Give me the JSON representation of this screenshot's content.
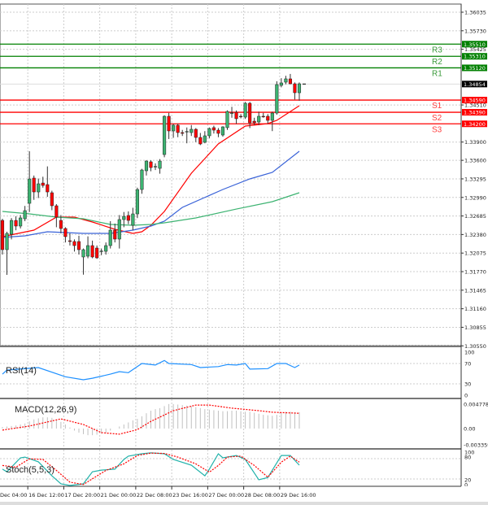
{
  "chart_data": {
    "type": "candlestick",
    "main": {
      "price_range": [
        1.3055,
        1.36035
      ],
      "y_ticks": [
        "1.36035",
        "1.35730",
        "1.35425",
        "1.34510",
        "1.33900",
        "1.33600",
        "1.33295",
        "1.32990",
        "1.32685",
        "1.32380",
        "1.32075",
        "1.31770",
        "1.31465",
        "1.31160",
        "1.30855",
        "1.30550"
      ],
      "current_price": "1.34854",
      "grid": true,
      "candles": [
        [
          1.32612,
          1.3264,
          1.32051,
          1.32131
        ],
        [
          1.32131,
          1.32426,
          1.31717,
          1.32398
        ],
        [
          1.32385,
          1.3265,
          1.323,
          1.32612
        ],
        [
          1.32612,
          1.3268,
          1.3245,
          1.32519
        ],
        [
          1.32519,
          1.327,
          1.3248,
          1.32653
        ],
        [
          1.32639,
          1.3285,
          1.326,
          1.32773
        ],
        [
          1.32893,
          1.33749,
          1.3275,
          1.33294
        ],
        [
          1.33308,
          1.3335,
          1.3295,
          1.3308
        ],
        [
          1.3308,
          1.333,
          1.3298,
          1.33214
        ],
        [
          1.33227,
          1.3333,
          1.3315,
          1.33187
        ],
        [
          1.33201,
          1.335,
          1.33,
          1.3308
        ],
        [
          1.33067,
          1.331,
          1.3278,
          1.32853
        ],
        [
          1.32853,
          1.3288,
          1.325,
          1.32666
        ],
        [
          1.32612,
          1.327,
          1.324,
          1.32479
        ],
        [
          1.32479,
          1.325,
          1.3225,
          1.32345
        ],
        [
          1.32278,
          1.324,
          1.322,
          1.32265
        ],
        [
          1.32265,
          1.323,
          1.321,
          1.32198
        ],
        [
          1.32265,
          1.3236,
          1.3205,
          1.32131
        ],
        [
          1.32011,
          1.3215,
          1.3172,
          1.32131
        ],
        [
          1.32024,
          1.3235,
          1.3199,
          1.32198
        ],
        [
          1.32198,
          1.3228,
          1.3199,
          1.32011
        ],
        [
          1.32158,
          1.322,
          1.3198,
          1.31997
        ],
        [
          1.32104,
          1.3215,
          1.3204,
          1.3211
        ],
        [
          1.32104,
          1.3225,
          1.3205,
          1.32198
        ],
        [
          1.32198,
          1.326,
          1.3215,
          1.32452
        ],
        [
          1.32452,
          1.3256,
          1.3225,
          1.32305
        ],
        [
          1.32305,
          1.327,
          1.3215,
          1.32626
        ],
        [
          1.32626,
          1.3275,
          1.325,
          1.32679
        ],
        [
          1.32693,
          1.3276,
          1.3255,
          1.32612
        ],
        [
          1.32532,
          1.3282,
          1.3245,
          1.32719
        ],
        [
          1.32719,
          1.3315,
          1.3265,
          1.3312
        ],
        [
          1.3312,
          1.3346,
          1.3305,
          1.33441
        ],
        [
          1.33428,
          1.336,
          1.3335,
          1.33588
        ],
        [
          1.33575,
          1.336,
          1.3342,
          1.33481
        ],
        [
          1.33495,
          1.3355,
          1.3344,
          1.335
        ],
        [
          1.33468,
          1.3362,
          1.3338,
          1.33588
        ],
        [
          1.33695,
          1.3434,
          1.3365,
          1.34324
        ],
        [
          1.34324,
          1.3438,
          1.3395,
          1.34083
        ],
        [
          1.34083,
          1.342,
          1.3397,
          1.34177
        ],
        [
          1.34177,
          1.342,
          1.3398,
          1.34056
        ],
        [
          1.34056,
          1.341,
          1.34,
          1.34043
        ],
        [
          1.3407,
          1.3414,
          1.3388,
          1.34075
        ],
        [
          1.34056,
          1.3418,
          1.34,
          1.3411
        ],
        [
          1.3411,
          1.3413,
          1.339,
          1.33976
        ],
        [
          1.33976,
          1.3405,
          1.3385,
          1.33869
        ],
        [
          1.33896,
          1.3408,
          1.3388,
          1.34003
        ],
        [
          1.34003,
          1.3414,
          1.3396,
          1.34123
        ],
        [
          1.34137,
          1.3417,
          1.3404,
          1.34096
        ],
        [
          1.34096,
          1.3413,
          1.3398,
          1.34043
        ],
        [
          1.34016,
          1.3416,
          1.3399,
          1.3415
        ],
        [
          1.34137,
          1.3442,
          1.341,
          1.34404
        ],
        [
          1.34377,
          1.3448,
          1.343,
          1.3438
        ],
        [
          1.3439,
          1.3442,
          1.342,
          1.34284
        ],
        [
          1.34324,
          1.3436,
          1.3429,
          1.3432
        ],
        [
          1.3431,
          1.3456,
          1.3428,
          1.34538
        ],
        [
          1.34538,
          1.3456,
          1.3413,
          1.34217
        ],
        [
          1.34243,
          1.343,
          1.3418,
          1.34217
        ],
        [
          1.3423,
          1.344,
          1.3418,
          1.34324
        ],
        [
          1.34324,
          1.3438,
          1.343,
          1.3432
        ],
        [
          1.34324,
          1.3436,
          1.342,
          1.34257
        ],
        [
          1.34257,
          1.344,
          1.3408,
          1.34377
        ],
        [
          1.34377,
          1.349,
          1.3435,
          1.34845
        ],
        [
          1.34832,
          1.3495,
          1.348,
          1.34872
        ],
        [
          1.34885,
          1.3499,
          1.3485,
          1.34939
        ],
        [
          1.34939,
          1.3502,
          1.3485,
          1.34858
        ],
        [
          1.34858,
          1.3488,
          1.346,
          1.34711
        ],
        [
          1.34711,
          1.3488,
          1.3458,
          1.34858
        ]
      ],
      "moving_averages": [
        {
          "color": "#ff0000",
          "points": [
            [
              0,
              1.32345
            ],
            [
              7,
              1.32452
            ],
            [
              12,
              1.32666
            ],
            [
              16,
              1.32666
            ],
            [
              20,
              1.32586
            ],
            [
              25,
              1.32465
            ],
            [
              29,
              1.32398
            ],
            [
              31,
              1.32425
            ],
            [
              33,
              1.32532
            ],
            [
              36,
              1.3276
            ],
            [
              42,
              1.33388
            ],
            [
              48,
              1.33869
            ],
            [
              54,
              1.34163
            ],
            [
              59,
              1.34203
            ],
            [
              61,
              1.34257
            ],
            [
              66,
              1.34498
            ]
          ]
        },
        {
          "color": "#3a63d8",
          "points": [
            [
              0,
              1.32332
            ],
            [
              5,
              1.32358
            ],
            [
              10,
              1.32425
            ],
            [
              18,
              1.32398
            ],
            [
              24,
              1.32398
            ],
            [
              29,
              1.32452
            ],
            [
              33,
              1.32519
            ],
            [
              36,
              1.32599
            ],
            [
              40,
              1.32826
            ],
            [
              49,
              1.3312
            ],
            [
              55,
              1.33294
            ],
            [
              60,
              1.33401
            ],
            [
              66,
              1.33749
            ]
          ]
        },
        {
          "color": "#3cb371",
          "points": [
            [
              0,
              1.32759
            ],
            [
              6,
              1.32719
            ],
            [
              12,
              1.32666
            ],
            [
              18,
              1.32639
            ],
            [
              24,
              1.32546
            ],
            [
              29,
              1.32532
            ],
            [
              33,
              1.32546
            ],
            [
              36,
              1.32572
            ],
            [
              43,
              1.32653
            ],
            [
              52,
              1.32799
            ],
            [
              60,
              1.3292
            ],
            [
              66,
              1.33067
            ]
          ]
        }
      ],
      "pivots": [
        {
          "name": "R3",
          "value": "1.35510",
          "color": "#008000"
        },
        {
          "name": "R2",
          "value": "1.35310",
          "color": "#008000"
        },
        {
          "name": "R1",
          "value": "1.35120",
          "color": "#008000"
        },
        {
          "name": "S1",
          "value": "1.34590",
          "color": "#ff0000"
        },
        {
          "name": "S2",
          "value": "1.34390",
          "color": "#ff0000"
        },
        {
          "name": "S3",
          "value": "1.34200",
          "color": "#ff0000"
        }
      ]
    },
    "rsi": {
      "label": "RSI(14)",
      "range": [
        0,
        100
      ],
      "levels": [
        "100",
        "70",
        "30",
        "0"
      ],
      "color": "#1e90ff",
      "points": [
        [
          0,
          49
        ],
        [
          1,
          57
        ],
        [
          8,
          62
        ],
        [
          14,
          44
        ],
        [
          18,
          38
        ],
        [
          20,
          41
        ],
        [
          24,
          49
        ],
        [
          26,
          54
        ],
        [
          28,
          52
        ],
        [
          31,
          70
        ],
        [
          34,
          67
        ],
        [
          36,
          76
        ],
        [
          37,
          70
        ],
        [
          42,
          68
        ],
        [
          44,
          62
        ],
        [
          48,
          64
        ],
        [
          50,
          68
        ],
        [
          52,
          67
        ],
        [
          54,
          70
        ],
        [
          55,
          59
        ],
        [
          59,
          60
        ],
        [
          61,
          70
        ],
        [
          63,
          70
        ],
        [
          65,
          62
        ],
        [
          66,
          67
        ]
      ]
    },
    "macd": {
      "label": "MACD(12,26,9)",
      "levels": [
        "0.004778",
        "0.00",
        "-0.003359"
      ],
      "range": [
        -0.003359,
        0.004778
      ],
      "histogram": [
        0.0003,
        0.0004,
        0.0005,
        0.0006,
        0.0008,
        0.001,
        0.0014,
        0.0018,
        0.002,
        0.0022,
        0.0022,
        0.0021,
        0.0018,
        0.0013,
        0.0008,
        0.0002,
        -0.0004,
        -0.0008,
        -0.0011,
        -0.0013,
        -0.0013,
        -0.0012,
        -0.001,
        -0.0008,
        -0.0004,
        0,
        0.0004,
        0.0008,
        0.0012,
        0.0016,
        0.0019,
        0.0024,
        0.003,
        0.0035,
        0.0038,
        0.004,
        0.0044,
        0.0048,
        0.0048,
        0.0047,
        0.0046,
        0.0045,
        0.0044,
        0.0042,
        0.004,
        0.0038,
        0.0037,
        0.0036,
        0.0035,
        0.0034,
        0.0034,
        0.0035,
        0.0035,
        0.0034,
        0.0033,
        0.0033,
        0.0031,
        0.0029,
        0.0027,
        0.0026,
        0.0025,
        0.0027,
        0.0031,
        0.0033,
        0.0033,
        0.0032,
        0.0032
      ],
      "signal": [
        [
          0,
          -0.0003
        ],
        [
          6,
          0.0005
        ],
        [
          13,
          0.0019
        ],
        [
          18,
          0.0008
        ],
        [
          22,
          -0.0008
        ],
        [
          26,
          -0.0011
        ],
        [
          30,
          -0.0002
        ],
        [
          33,
          0.0014
        ],
        [
          38,
          0.0035
        ],
        [
          43,
          0.0046
        ],
        [
          46,
          0.0046
        ],
        [
          51,
          0.004
        ],
        [
          57,
          0.0035
        ],
        [
          60,
          0.0032
        ],
        [
          66,
          0.003
        ]
      ]
    },
    "stoch": {
      "label": "Stoch(5,5,3)",
      "range": [
        0,
        100
      ],
      "levels": [
        "100",
        "80",
        "20",
        "0"
      ],
      "main": [
        [
          0,
          49
        ],
        [
          1,
          41
        ],
        [
          4,
          83
        ],
        [
          5,
          85
        ],
        [
          8,
          71
        ],
        [
          11,
          29
        ],
        [
          13,
          5
        ],
        [
          15,
          0
        ],
        [
          18,
          5
        ],
        [
          20,
          41
        ],
        [
          22,
          46
        ],
        [
          25,
          49
        ],
        [
          27,
          78
        ],
        [
          28,
          88
        ],
        [
          31,
          95
        ],
        [
          33,
          98
        ],
        [
          36,
          95
        ],
        [
          38,
          78
        ],
        [
          42,
          61
        ],
        [
          45,
          29
        ],
        [
          46,
          49
        ],
        [
          48,
          95
        ],
        [
          49,
          83
        ],
        [
          52,
          90
        ],
        [
          54,
          78
        ],
        [
          57,
          17
        ],
        [
          59,
          24
        ],
        [
          62,
          90
        ],
        [
          64,
          90
        ],
        [
          66,
          61
        ]
      ],
      "signal": [
        [
          0,
          60
        ],
        [
          3,
          55
        ],
        [
          6,
          80
        ],
        [
          9,
          78
        ],
        [
          12,
          45
        ],
        [
          15,
          10
        ],
        [
          18,
          3
        ],
        [
          20,
          20
        ],
        [
          23,
          45
        ],
        [
          27,
          65
        ],
        [
          30,
          90
        ],
        [
          33,
          97
        ],
        [
          36,
          96
        ],
        [
          39,
          85
        ],
        [
          43,
          65
        ],
        [
          46,
          40
        ],
        [
          48,
          60
        ],
        [
          50,
          85
        ],
        [
          53,
          88
        ],
        [
          56,
          60
        ],
        [
          59,
          25
        ],
        [
          62,
          70
        ],
        [
          64,
          88
        ],
        [
          66,
          70
        ]
      ]
    },
    "x_ticks": [
      {
        "label": "Dec 04:00",
        "index": 0
      },
      {
        "label": "16 Dec 12:00",
        "index": 6
      },
      {
        "label": "17 Dec 20:00",
        "index": 14
      },
      {
        "label": "21 Dec 00:00",
        "index": 22
      },
      {
        "label": "22 Dec 08:00",
        "index": 30
      },
      {
        "label": "23 Dec 16:00",
        "index": 38
      },
      {
        "label": "27 Dec 00:00",
        "index": 46
      },
      {
        "label": "28 Dec 08:00",
        "index": 54
      },
      {
        "label": "29 Dec 16:00",
        "index": 62
      }
    ],
    "colors": {
      "bull": "#3cb371",
      "bear": "#ff0000",
      "macd_hist": "#c0c0c0",
      "macd_signal": "#ff0000",
      "stoch_main": "#20b2aa",
      "stoch_signal": "#ff0000"
    }
  }
}
